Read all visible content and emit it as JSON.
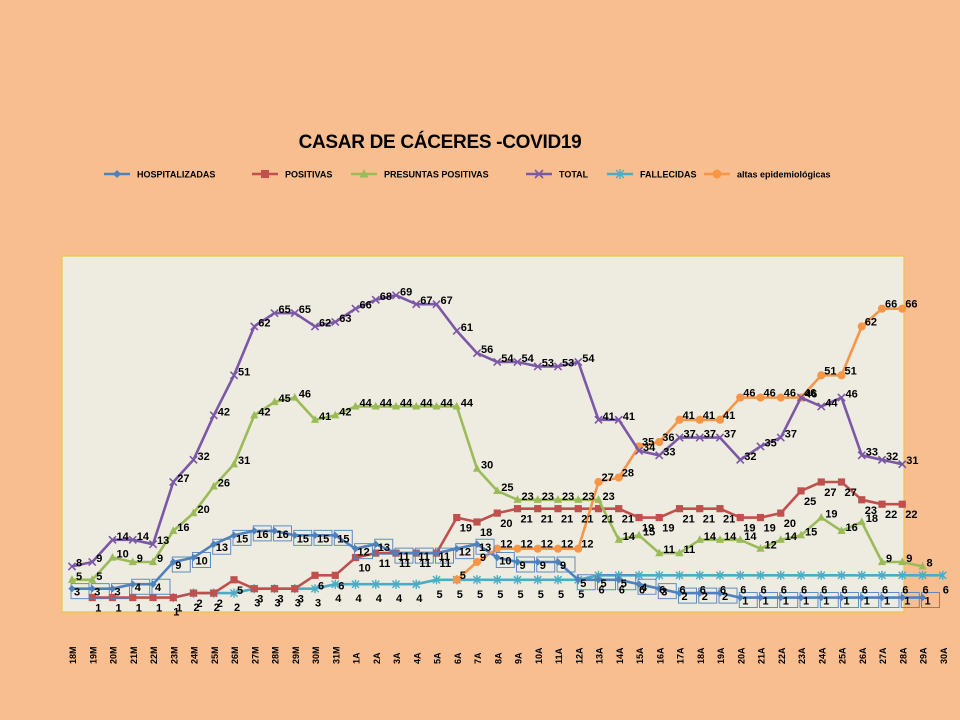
{
  "chart_data": {
    "type": "line",
    "title": "CASAR DE CÁCERES -COVID19",
    "xlabel": "",
    "ylabel": "",
    "ylim": [
      0,
      72
    ],
    "grid": false,
    "legend_position": "top",
    "categories": [
      "18M",
      "19M",
      "20M",
      "21M",
      "22M",
      "23M",
      "24M",
      "25M",
      "26M",
      "27M",
      "28M",
      "29M",
      "30M",
      "31M",
      "1A",
      "2A",
      "3A",
      "4A",
      "5A",
      "6A",
      "7A",
      "8A",
      "9A",
      "10A",
      "11A",
      "12A",
      "13A",
      "14A",
      "15A",
      "16A",
      "17A",
      "18A",
      "19A",
      "20A",
      "21A",
      "22A",
      "23A",
      "24A",
      "25A",
      "26A",
      "27A",
      "28A",
      "29A",
      "30A"
    ],
    "series": [
      {
        "name": "HOSPITALIZADAS",
        "color": "#4f81bd",
        "marker": "diamond",
        "values": [
          3,
          3,
          3,
          4,
          4,
          9,
          10,
          13,
          15,
          16,
          16,
          15,
          15,
          15,
          12,
          13,
          11,
          11,
          11,
          12,
          13,
          10,
          9,
          9,
          9,
          5,
          5,
          5,
          4,
          3,
          2,
          2,
          2,
          1,
          1,
          1,
          1,
          1,
          1,
          1,
          1,
          1,
          1,
          null
        ]
      },
      {
        "name": "POSITIVAS",
        "color": "#c0504d",
        "marker": "square",
        "values": [
          null,
          1,
          1,
          1,
          1,
          1,
          2,
          2,
          5,
          3,
          3,
          3,
          6,
          6,
          10,
          11,
          11,
          11,
          11,
          19,
          18,
          20,
          21,
          21,
          21,
          21,
          21,
          21,
          19,
          19,
          21,
          21,
          21,
          19,
          19,
          20,
          25,
          27,
          27,
          23,
          22,
          22,
          null,
          null
        ]
      },
      {
        "name": "PRESUNTAS POSITIVAS",
        "color": "#9bbb59",
        "marker": "triangle",
        "values": [
          5,
          5,
          10,
          9,
          9,
          16,
          20,
          26,
          31,
          42,
          45,
          46,
          41,
          42,
          44,
          44,
          44,
          44,
          44,
          44,
          30,
          25,
          23,
          23,
          23,
          23,
          23,
          14,
          15,
          11,
          11,
          14,
          14,
          14,
          12,
          14,
          15,
          19,
          16,
          18,
          9,
          9,
          8,
          null
        ]
      },
      {
        "name": "TOTAL",
        "color": "#7b58a6",
        "marker": "x",
        "values": [
          8,
          9,
          14,
          14,
          13,
          27,
          32,
          42,
          51,
          62,
          65,
          65,
          62,
          63,
          66,
          68,
          69,
          67,
          67,
          61,
          56,
          54,
          54,
          53,
          53,
          54,
          41,
          41,
          34,
          33,
          37,
          37,
          37,
          32,
          35,
          37,
          46,
          44,
          46,
          33,
          32,
          31,
          null,
          null
        ]
      },
      {
        "name": "FALLECIDAS",
        "color": "#4bacc6",
        "marker": "star",
        "values": [
          null,
          null,
          null,
          null,
          null,
          1,
          2,
          2,
          2,
          3,
          3,
          3,
          3,
          4,
          4,
          4,
          4,
          4,
          5,
          5,
          5,
          5,
          5,
          5,
          5,
          5,
          6,
          6,
          6,
          6,
          6,
          6,
          6,
          6,
          6,
          6,
          6,
          6,
          6,
          6,
          6,
          6,
          6,
          6
        ]
      },
      {
        "name": "altas epidemiológicas",
        "color": "#f79646",
        "marker": "circle",
        "values": [
          null,
          null,
          null,
          null,
          null,
          null,
          null,
          null,
          null,
          null,
          null,
          null,
          null,
          null,
          null,
          null,
          null,
          null,
          null,
          5,
          9,
          12,
          12,
          12,
          12,
          12,
          27,
          28,
          35,
          36,
          41,
          41,
          41,
          46,
          46,
          46,
          46,
          51,
          51,
          62,
          66,
          66,
          null,
          null
        ]
      }
    ]
  }
}
